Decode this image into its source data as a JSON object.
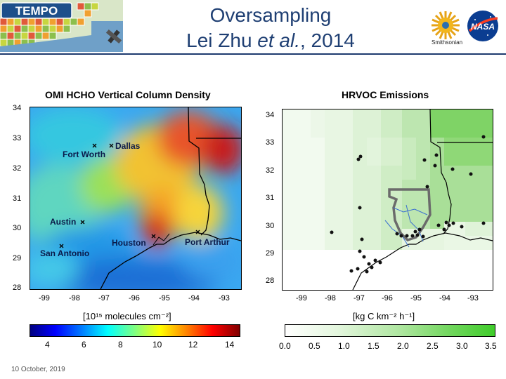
{
  "header": {
    "title_line1": "Oversampling",
    "title_line2_name": "Lei Zhu ",
    "title_line2_etal": "et al.",
    "title_line2_year": ", 2014",
    "tempo_label": "TEMPO",
    "smithsonian_label": "Smithsonian",
    "nasa_label": "NASA"
  },
  "left_panel": {
    "title": "OMI HCHO Vertical Column Density",
    "y_ticks": [
      "34",
      "33",
      "32",
      "31",
      "30",
      "29",
      "28"
    ],
    "x_ticks": [
      "-99",
      "-98",
      "-97",
      "-96",
      "-95",
      "-94",
      "-93"
    ],
    "cities": {
      "fort_worth": "Fort Worth",
      "dallas": "Dallas",
      "austin": "Austin",
      "san_antonio": "San Antonio",
      "houston": "Houston",
      "port_arthur": "Port Arthur"
    },
    "unit_label": "[10¹⁵ molecules cm⁻²]",
    "colorbar_ticks": [
      "4",
      "6",
      "8",
      "10",
      "12",
      "14"
    ]
  },
  "right_panel": {
    "title": "HRVOC Emissions",
    "y_ticks": [
      "34",
      "33",
      "32",
      "31",
      "30",
      "29",
      "28"
    ],
    "x_ticks": [
      "-99",
      "-98",
      "-97",
      "-96",
      "-95",
      "-94",
      "-93"
    ],
    "unit_label": "[kg C km⁻² h⁻¹]",
    "colorbar_ticks": [
      "0.0",
      "0.5",
      "1.0",
      "1.5",
      "2.0",
      "2.5",
      "3.0",
      "3.5"
    ]
  },
  "footer": {
    "date": "10 October, 2019"
  }
}
